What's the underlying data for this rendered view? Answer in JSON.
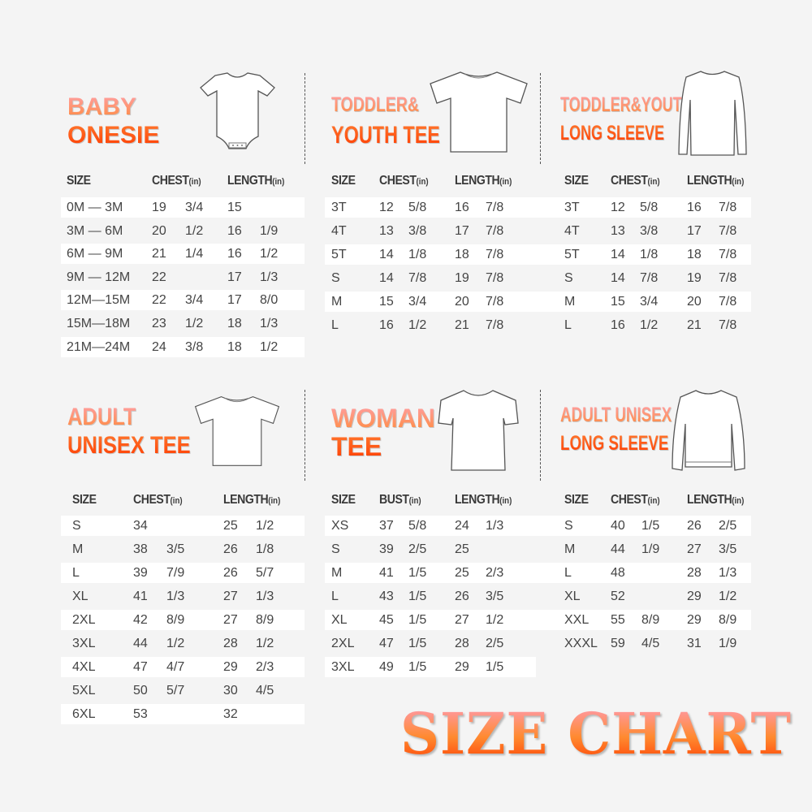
{
  "colors": {
    "background": "#f4f4f4",
    "title_light": "#ffa0a8",
    "title_orange": "#ff8a3a",
    "title_red": "#ff3a00",
    "text": "#444444"
  },
  "footer_title": "SIZE CHART",
  "unit": "(in)",
  "panels": [
    {
      "id": "baby-onesie",
      "title_line1": "BABY",
      "title_line2": "ONESIE",
      "icon": "onesie-icon",
      "headers": [
        "SIZE",
        "CHEST",
        "LENGTH"
      ],
      "rows": [
        [
          "0M — 3M",
          "19",
          "3/4",
          "15",
          ""
        ],
        [
          "3M — 6M",
          "20",
          "1/2",
          "16",
          "1/9"
        ],
        [
          "6M — 9M",
          "21",
          "1/4",
          "16",
          "1/2"
        ],
        [
          "9M — 12M",
          "22",
          "",
          "17",
          "1/3"
        ],
        [
          "12M—15M",
          "22",
          "3/4",
          "17",
          "8/0"
        ],
        [
          "15M—18M",
          "23",
          "1/2",
          "18",
          "1/3"
        ],
        [
          "21M—24M",
          "24",
          "3/8",
          "18",
          "1/2"
        ]
      ]
    },
    {
      "id": "toddler-youth-tee",
      "title_line1": "TODDLER&",
      "title_line2": "YOUTH TEE",
      "icon": "tshirt-icon",
      "headers": [
        "SIZE",
        "CHEST",
        "LENGTH"
      ],
      "rows": [
        [
          "3T",
          "12",
          "5/8",
          "16",
          "7/8"
        ],
        [
          "4T",
          "13",
          "3/8",
          "17",
          "7/8"
        ],
        [
          "5T",
          "14",
          "1/8",
          "18",
          "7/8"
        ],
        [
          "S",
          "14",
          "7/8",
          "19",
          "7/8"
        ],
        [
          "M",
          "15",
          "3/4",
          "20",
          "7/8"
        ],
        [
          "L",
          "16",
          "1/2",
          "21",
          "7/8"
        ]
      ]
    },
    {
      "id": "toddler-youth-long-sleeve",
      "title_line1": "TODDLER&YOUTH",
      "title_line2": "LONG SLEEVE",
      "icon": "long-sleeve-icon",
      "headers": [
        "SIZE",
        "CHEST",
        "LENGTH"
      ],
      "rows": [
        [
          "3T",
          "12",
          "5/8",
          "16",
          "7/8"
        ],
        [
          "4T",
          "13",
          "3/8",
          "17",
          "7/8"
        ],
        [
          "5T",
          "14",
          "1/8",
          "18",
          "7/8"
        ],
        [
          "S",
          "14",
          "7/8",
          "19",
          "7/8"
        ],
        [
          "M",
          "15",
          "3/4",
          "20",
          "7/8"
        ],
        [
          "L",
          "16",
          "1/2",
          "21",
          "7/8"
        ]
      ]
    },
    {
      "id": "adult-unisex-tee",
      "title_line1": "ADULT",
      "title_line2": "UNISEX TEE",
      "icon": "tshirt-icon",
      "headers": [
        "SIZE",
        "CHEST",
        "LENGTH"
      ],
      "rows": [
        [
          "S",
          "34",
          "",
          "25",
          "1/2"
        ],
        [
          "M",
          "38",
          "3/5",
          "26",
          "1/8"
        ],
        [
          "L",
          "39",
          "7/9",
          "26",
          "5/7"
        ],
        [
          "XL",
          "41",
          "1/3",
          "27",
          "1/3"
        ],
        [
          "2XL",
          "42",
          "8/9",
          "27",
          "8/9"
        ],
        [
          "3XL",
          "44",
          "1/2",
          "28",
          "1/2"
        ],
        [
          "4XL",
          "47",
          "4/7",
          "29",
          "2/3"
        ],
        [
          "5XL",
          "50",
          "5/7",
          "30",
          "4/5"
        ],
        [
          "6XL",
          "53",
          "",
          "32",
          ""
        ]
      ]
    },
    {
      "id": "woman-tee",
      "title_line1": "WOMAN",
      "title_line2": "TEE",
      "icon": "women-tshirt-icon",
      "headers": [
        "SIZE",
        "BUST",
        "LENGTH"
      ],
      "rows": [
        [
          "XS",
          "37",
          "5/8",
          "24",
          "1/3"
        ],
        [
          "S",
          "39",
          "2/5",
          "25",
          ""
        ],
        [
          "M",
          "41",
          "1/5",
          "25",
          "2/3"
        ],
        [
          "L",
          "43",
          "1/5",
          "26",
          "3/5"
        ],
        [
          "XL",
          "45",
          "1/5",
          "27",
          "1/2"
        ],
        [
          "2XL",
          "47",
          "1/5",
          "28",
          "2/5"
        ],
        [
          "3XL",
          "49",
          "1/5",
          "29",
          "1/5"
        ]
      ]
    },
    {
      "id": "adult-unisex-long-sleeve",
      "title_line1": "ADULT UNISEX",
      "title_line2": "LONG SLEEVE",
      "icon": "sweatshirt-icon",
      "headers": [
        "SIZE",
        "CHEST",
        "LENGTH"
      ],
      "rows": [
        [
          "S",
          "40",
          "1/5",
          "26",
          "2/5"
        ],
        [
          "M",
          "44",
          "1/9",
          "27",
          "3/5"
        ],
        [
          "L",
          "48",
          "",
          "28",
          "1/3"
        ],
        [
          "XL",
          "52",
          "",
          "29",
          "1/2"
        ],
        [
          "XXL",
          "55",
          "8/9",
          "29",
          "8/9"
        ],
        [
          "XXXL",
          "59",
          "4/5",
          "31",
          "1/9"
        ]
      ]
    }
  ]
}
